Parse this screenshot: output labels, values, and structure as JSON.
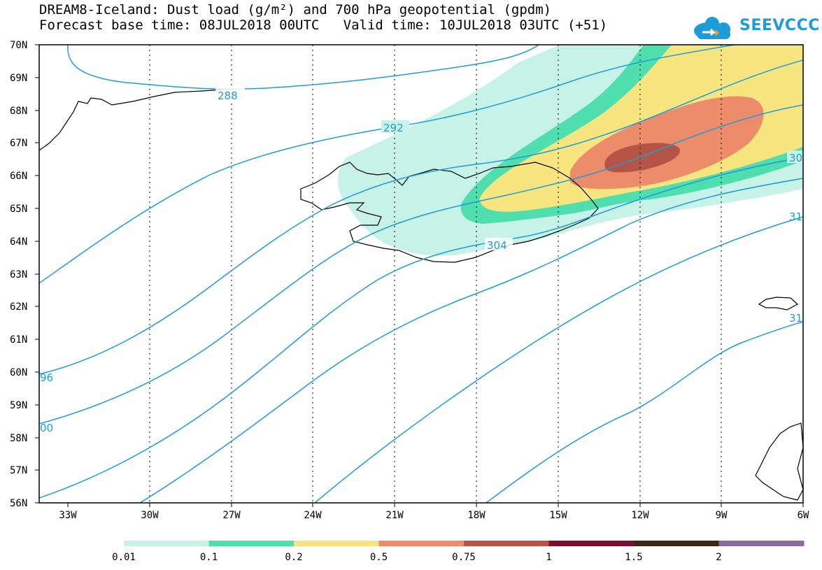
{
  "title_line1": "DREAM8-Iceland: Dust load (g/m²) and 700 hPa geopotential (gpdm)",
  "title_line2": "Forecast base time: 08JUL2018 00UTC   Valid time: 10JUL2018 03UTC (+51)",
  "logo_text": "SEEVCCC",
  "lat_labels": [
    "70N",
    "69N",
    "68N",
    "67N",
    "66N",
    "65N",
    "64N",
    "63N",
    "62N",
    "61N",
    "60N",
    "59N",
    "58N",
    "57N",
    "56N"
  ],
  "lon_labels": [
    "33W",
    "30W",
    "27W",
    "24W",
    "21W",
    "18W",
    "15W",
    "12W",
    "9W",
    "6W"
  ],
  "contour_labels": [
    "288",
    "292",
    "304",
    "30",
    "31",
    "31",
    "96",
    "00"
  ],
  "colorbar_labels": [
    "0.01",
    "0.1",
    "0.2",
    "0.5",
    "0.75",
    "1",
    "1.5",
    "2"
  ],
  "colorbar_colors": [
    "#c6f2e8",
    "#4fdeae",
    "#f7e680",
    "#ec8c6a",
    "#b35446",
    "#7e0d30",
    "#3c2712",
    "#8d6a9b"
  ],
  "contour_color": "#1e9cd7"
}
